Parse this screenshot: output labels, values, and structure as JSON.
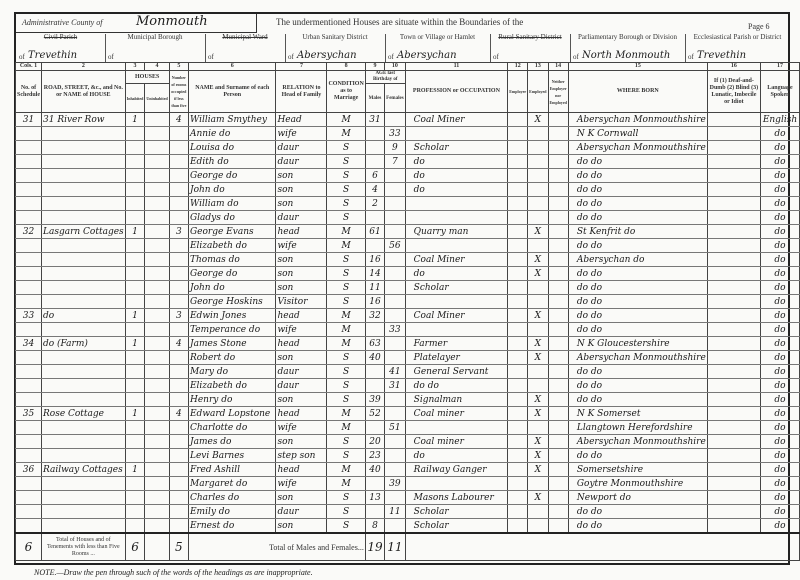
{
  "header": {
    "county_label": "Administrative County of",
    "county_value": "Monmouth",
    "intro_text": "The undermentioned Houses are situate within the Boundaries of the",
    "page": "Page 6",
    "districts": [
      {
        "label": "Civil Parish",
        "struck": true,
        "value": "Trevethin"
      },
      {
        "label": "Municipal Borough",
        "struck": false,
        "value": ""
      },
      {
        "label": "Municipal Ward",
        "struck": true,
        "value": ""
      },
      {
        "label": "Urban Sanitary District",
        "struck": false,
        "value": "Abersychan"
      },
      {
        "label": "Town or Village or Hamlet",
        "struck": false,
        "value": "Abersychan"
      },
      {
        "label": "Rural Sanitary District",
        "struck": true,
        "value": ""
      },
      {
        "label": "Parliamentary Borough or Division",
        "struck": false,
        "value": "North Monmouth"
      },
      {
        "label": "Ecclesiastical Parish or District",
        "struck": false,
        "value": "Trevethin"
      }
    ],
    "of_label": "of"
  },
  "columns": {
    "numbers": [
      "Cols. 1",
      "2",
      "3",
      "4",
      "5",
      "6",
      "7",
      "8",
      "9",
      "10",
      "11",
      "12",
      "13",
      "14",
      "15",
      "16",
      "17"
    ],
    "headings": [
      "No. of Schedule",
      "ROAD, STREET, &c., and No. or NAME of HOUSE",
      "Inhabited",
      "Uninhabited",
      "Number of rooms occupied if less than five",
      "NAME and Surname of each Person",
      "RELATION to Head of Family",
      "CONDITION as to Marriage",
      "Males",
      "Females",
      "PROFESSION or OCCUPATION",
      "Employer",
      "Employed",
      "Neither Employer nor Employed",
      "WHERE BORN",
      "If (1) Deaf-and-Dumb (2) Blind (3) Lunatic, Imbecile or Idiot",
      "Language Spoken"
    ],
    "houses_group": "HOUSES",
    "age_group": "AGE last Birthday of"
  },
  "rows": [
    [
      "31",
      "31 River Row",
      "1",
      "",
      "4",
      "William Smythey",
      "Head",
      "M",
      "31",
      "",
      "Coal Miner",
      "",
      "X",
      "",
      "Abersychan Monmouthshire",
      "",
      "English"
    ],
    [
      "",
      "",
      "",
      "",
      "",
      "Annie      do",
      "wife",
      "M",
      "",
      "33",
      "",
      "",
      "",
      "",
      "N K      Cornwall",
      "",
      "do"
    ],
    [
      "",
      "",
      "",
      "",
      "",
      "Louisa      do",
      "daur",
      "S",
      "",
      "9",
      "Scholar",
      "",
      "",
      "",
      "Abersychan Monmouthshire",
      "",
      "do"
    ],
    [
      "",
      "",
      "",
      "",
      "",
      "Edith      do",
      "daur",
      "S",
      "",
      "7",
      "do",
      "",
      "",
      "",
      "do      do",
      "",
      "do"
    ],
    [
      "",
      "",
      "",
      "",
      "",
      "George      do",
      "son",
      "S",
      "6",
      "",
      "do",
      "",
      "",
      "",
      "do      do",
      "",
      "do"
    ],
    [
      "",
      "",
      "",
      "",
      "",
      "John      do",
      "son",
      "S",
      "4",
      "",
      "do",
      "",
      "",
      "",
      "do      do",
      "",
      "do"
    ],
    [
      "",
      "",
      "",
      "",
      "",
      "William      do",
      "son",
      "S",
      "2",
      "",
      "",
      "",
      "",
      "",
      "do      do",
      "",
      "do"
    ],
    [
      "",
      "",
      "",
      "",
      "",
      "Gladys      do",
      "daur",
      "S",
      "",
      "",
      "",
      "",
      "",
      "",
      "do      do",
      "",
      "do"
    ],
    [
      "32",
      "Lasgarn Cottages",
      "1",
      "",
      "3",
      "George Evans",
      "head",
      "M",
      "61",
      "",
      "Quarry man",
      "",
      "X",
      "",
      "St Kenfrit      do",
      "",
      "do"
    ],
    [
      "",
      "",
      "",
      "",
      "",
      "Elizabeth      do",
      "wife",
      "M",
      "",
      "56",
      "",
      "",
      "",
      "",
      "do      do",
      "",
      "do"
    ],
    [
      "",
      "",
      "",
      "",
      "",
      "Thomas      do",
      "son",
      "S",
      "16",
      "",
      "Coal Miner",
      "",
      "X",
      "",
      "Abersychan      do",
      "",
      "do"
    ],
    [
      "",
      "",
      "",
      "",
      "",
      "George      do",
      "son",
      "S",
      "14",
      "",
      "do",
      "",
      "X",
      "",
      "do      do",
      "",
      "do"
    ],
    [
      "",
      "",
      "",
      "",
      "",
      "John      do",
      "son",
      "S",
      "11",
      "",
      "Scholar",
      "",
      "",
      "",
      "do      do",
      "",
      "do"
    ],
    [
      "",
      "",
      "",
      "",
      "",
      "George Hoskins",
      "Visitor",
      "S",
      "16",
      "",
      "",
      "",
      "",
      "",
      "do      do",
      "",
      "do"
    ],
    [
      "33",
      "do",
      "1",
      "",
      "3",
      "Edwin Jones",
      "head",
      "M",
      "32",
      "",
      "Coal Miner",
      "",
      "X",
      "",
      "do      do",
      "",
      "do"
    ],
    [
      "",
      "",
      "",
      "",
      "",
      "Temperance      do",
      "wife",
      "M",
      "",
      "33",
      "",
      "",
      "",
      "",
      "do      do",
      "",
      "do"
    ],
    [
      "34",
      "do (Farm)",
      "1",
      "",
      "4",
      "James Stone",
      "head",
      "M",
      "63",
      "",
      "Farmer",
      "",
      "X",
      "",
      "N K      Gloucestershire",
      "",
      "do"
    ],
    [
      "",
      "",
      "",
      "",
      "",
      "Robert      do",
      "son",
      "S",
      "40",
      "",
      "Platelayer",
      "",
      "X",
      "",
      "Abersychan Monmouthshire",
      "",
      "do"
    ],
    [
      "",
      "",
      "",
      "",
      "",
      "Mary      do",
      "daur",
      "S",
      "",
      "41",
      "General Servant",
      "",
      "",
      "",
      "do      do",
      "",
      "do"
    ],
    [
      "",
      "",
      "",
      "",
      "",
      "Elizabeth      do",
      "daur",
      "S",
      "",
      "31",
      "do      do",
      "",
      "",
      "",
      "do      do",
      "",
      "do"
    ],
    [
      "",
      "",
      "",
      "",
      "",
      "Henry      do",
      "son",
      "S",
      "39",
      "",
      "Signalman",
      "",
      "X",
      "",
      "do      do",
      "",
      "do"
    ],
    [
      "35",
      "Rose Cottage",
      "1",
      "",
      "4",
      "Edward Lopstone",
      "head",
      "M",
      "52",
      "",
      "Coal miner",
      "",
      "X",
      "",
      "N K      Somerset",
      "",
      "do"
    ],
    [
      "",
      "",
      "",
      "",
      "",
      "Charlotte      do",
      "wife",
      "M",
      "",
      "51",
      "",
      "",
      "",
      "",
      "Llangtown Herefordshire",
      "",
      "do"
    ],
    [
      "",
      "",
      "",
      "",
      "",
      "James      do",
      "son",
      "S",
      "20",
      "",
      "Coal miner",
      "",
      "X",
      "",
      "Abersychan Monmouthshire",
      "",
      "do"
    ],
    [
      "",
      "",
      "",
      "",
      "",
      "Levi   Barnes",
      "step son",
      "S",
      "23",
      "",
      "do",
      "",
      "X",
      "",
      "do      do",
      "",
      "do"
    ],
    [
      "36",
      "Railway Cottages",
      "1",
      "",
      "",
      "Fred Ashill",
      "head",
      "M",
      "40",
      "",
      "Railway Ganger",
      "",
      "X",
      "",
      "Somersetshire",
      "",
      "do"
    ],
    [
      "",
      "",
      "",
      "",
      "",
      "Margaret      do",
      "wife",
      "M",
      "",
      "39",
      "",
      "",
      "",
      "",
      "Goytre Monmouthshire",
      "",
      "do"
    ],
    [
      "",
      "",
      "",
      "",
      "",
      "Charles      do",
      "son",
      "S",
      "13",
      "",
      "Masons Labourer",
      "",
      "X",
      "",
      "Newport      do",
      "",
      "do"
    ],
    [
      "",
      "",
      "",
      "",
      "",
      "Emily      do",
      "daur",
      "S",
      "",
      "11",
      "Scholar",
      "",
      "",
      "",
      "do      do",
      "",
      "do"
    ],
    [
      "",
      "",
      "",
      "",
      "",
      "Ernest      do",
      "son",
      "S",
      "8",
      "",
      "Scholar",
      "",
      "",
      "",
      "do      do",
      "",
      "do"
    ]
  ],
  "totals": {
    "schedules": "6",
    "houses_label": "Total of Houses and of Tenements with less than Five Rooms ...",
    "inhabited": "6",
    "rooms": "5",
    "persons_label": "Total of Males and Females...",
    "males": "19",
    "females": "11"
  },
  "note": "NOTE.—Draw the pen through such of the words of the headings as are inappropriate."
}
